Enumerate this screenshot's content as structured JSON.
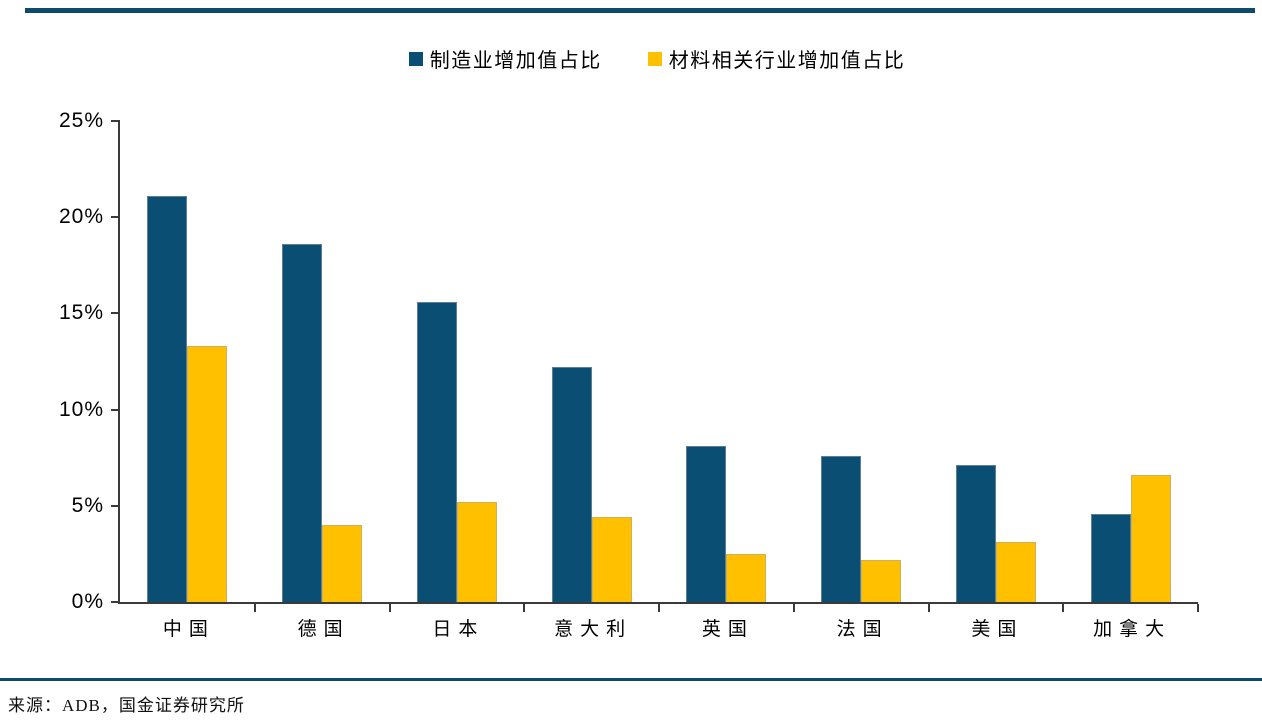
{
  "accent_color": "#0e4a6b",
  "axis_color": "#3a3a3a",
  "source_note": "来源：ADB，国金证券研究所",
  "chart_data": {
    "type": "bar",
    "title": "",
    "xlabel": "",
    "ylabel": "",
    "categories": [
      "中国",
      "德国",
      "日本",
      "意大利",
      "英国",
      "法国",
      "美国",
      "加拿大"
    ],
    "series": [
      {
        "name": "制造业增加值占比",
        "color": "#0a4e73",
        "values": [
          21.1,
          18.6,
          15.6,
          12.2,
          8.1,
          7.6,
          7.1,
          4.6
        ]
      },
      {
        "name": "材料相关行业增加值占比",
        "color": "#ffc000",
        "values": [
          13.3,
          4.0,
          5.2,
          4.4,
          2.5,
          2.2,
          3.1,
          6.6
        ]
      }
    ],
    "ylim": [
      0,
      25
    ],
    "y_ticks": [
      "0%",
      "5%",
      "10%",
      "15%",
      "20%",
      "25%"
    ],
    "legend_position": "top-center",
    "grid": false
  }
}
